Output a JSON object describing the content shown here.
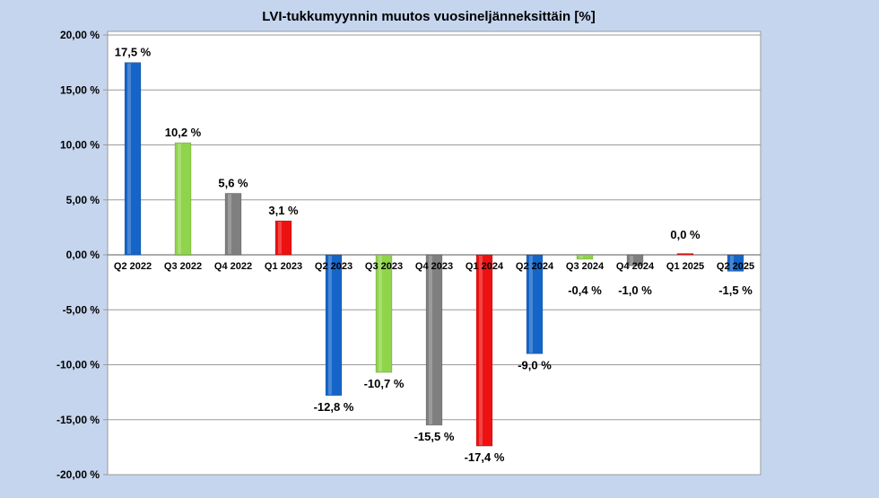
{
  "chart_data": {
    "type": "bar",
    "title": "LVI-tukkumyynnin muutos vuosineljänneksittäin [%]",
    "xlabel": "",
    "ylabel": "",
    "ylim": [
      -20,
      20
    ],
    "yticks": [
      20,
      15,
      10,
      5,
      0,
      -5,
      -10,
      -15,
      -20
    ],
    "ytick_labels": [
      "20,00 %",
      "15,00 %",
      "10,00 %",
      "5,00 %",
      "0,00 %",
      "-5,00 %",
      "-10,00 %",
      "-15,00 %",
      "-20,00 %"
    ],
    "grid": true,
    "legend": "none",
    "categories": [
      "Q2 2022",
      "Q3 2022",
      "Q4 2022",
      "Q1 2023",
      "Q2 2023",
      "Q3 2023",
      "Q4 2023",
      "Q1 2024",
      "Q2 2024",
      "Q3 2024",
      "Q4 2024",
      "Q1 2025",
      "Q2 2025"
    ],
    "values": [
      17.5,
      10.2,
      5.6,
      3.1,
      -12.8,
      -10.7,
      -15.5,
      -17.4,
      -9.0,
      -0.4,
      -1.0,
      0.0,
      -1.5
    ],
    "data_labels": [
      "17,5 %",
      "10,2 %",
      "5,6 %",
      "3,1 %",
      "-12,8 %",
      "-10,7 %",
      "-15,5 %",
      "-17,4 %",
      "-9,0 %",
      "-0,4 %",
      "-1,0 %",
      "0,0 %",
      "-1,5 %"
    ],
    "colors": [
      "#1565c8",
      "#8fd44a",
      "#7f7f7f",
      "#ee1111",
      "#1565c8",
      "#8fd44a",
      "#7f7f7f",
      "#ee1111",
      "#1565c8",
      "#8fd44a",
      "#7f7f7f",
      "#ee1111",
      "#1565c8"
    ]
  }
}
